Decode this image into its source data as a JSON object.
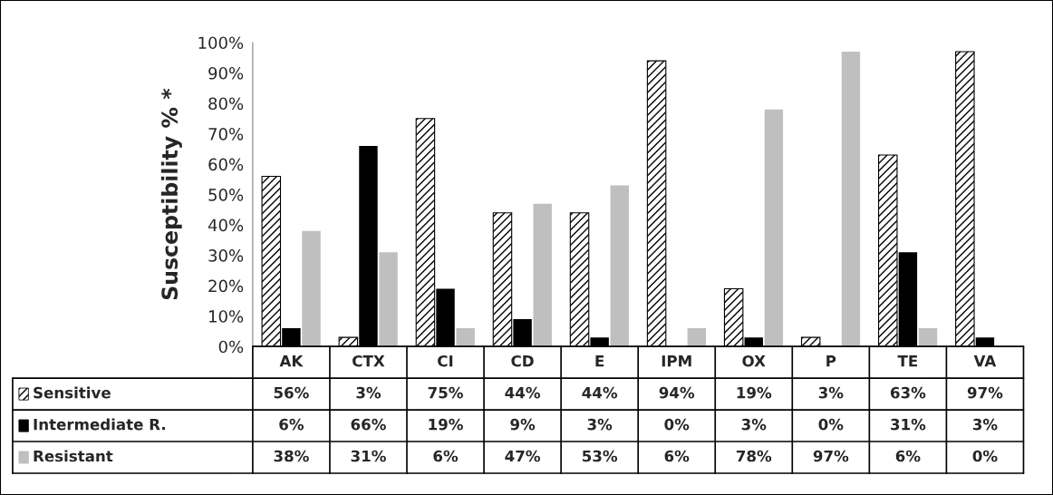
{
  "chart_data": {
    "type": "bar",
    "ylabel": "Susceptibility % *",
    "categories": [
      "AK",
      "CTX",
      "CI",
      "CD",
      "E",
      "IPM",
      "OX",
      "P",
      "TE",
      "VA"
    ],
    "series": [
      {
        "name": "Sensitive",
        "color": "#000000",
        "values": [
          56,
          3,
          75,
          44,
          44,
          94,
          19,
          3,
          63,
          97
        ],
        "value_labels": [
          "56%",
          "3%",
          "75%",
          "44%",
          "44%",
          "94%",
          "19%",
          "3%",
          "63%",
          "97%"
        ]
      },
      {
        "name": "Intermediate R.",
        "color": "#000000",
        "values": [
          6,
          66,
          19,
          9,
          3,
          0,
          3,
          0,
          31,
          3
        ],
        "value_labels": [
          "6%",
          "66%",
          "19%",
          "9%",
          "3%",
          "0%",
          "3%",
          "0%",
          "31%",
          "3%"
        ]
      },
      {
        "name": "Resistant",
        "color": "#bfbfbf",
        "values": [
          38,
          31,
          6,
          47,
          53,
          6,
          78,
          97,
          6,
          0
        ],
        "value_labels": [
          "38%",
          "31%",
          "6%",
          "47%",
          "53%",
          "6%",
          "78%",
          "97%",
          "6%",
          "0%"
        ]
      }
    ],
    "ylim": [
      0,
      100
    ],
    "yticks": [
      {
        "value": 0,
        "label": "0%"
      },
      {
        "value": 10,
        "label": "10%"
      },
      {
        "value": 20,
        "label": "20%"
      },
      {
        "value": 30,
        "label": "30%"
      },
      {
        "value": 40,
        "label": "40%"
      },
      {
        "value": 50,
        "label": "50%"
      },
      {
        "value": 60,
        "label": "60%"
      },
      {
        "value": 70,
        "label": "70%"
      },
      {
        "value": 80,
        "label": "80%"
      },
      {
        "value": 90,
        "label": "90%"
      },
      {
        "value": 100,
        "label": "100%"
      }
    ],
    "grid": false,
    "legend": "bottom left"
  }
}
